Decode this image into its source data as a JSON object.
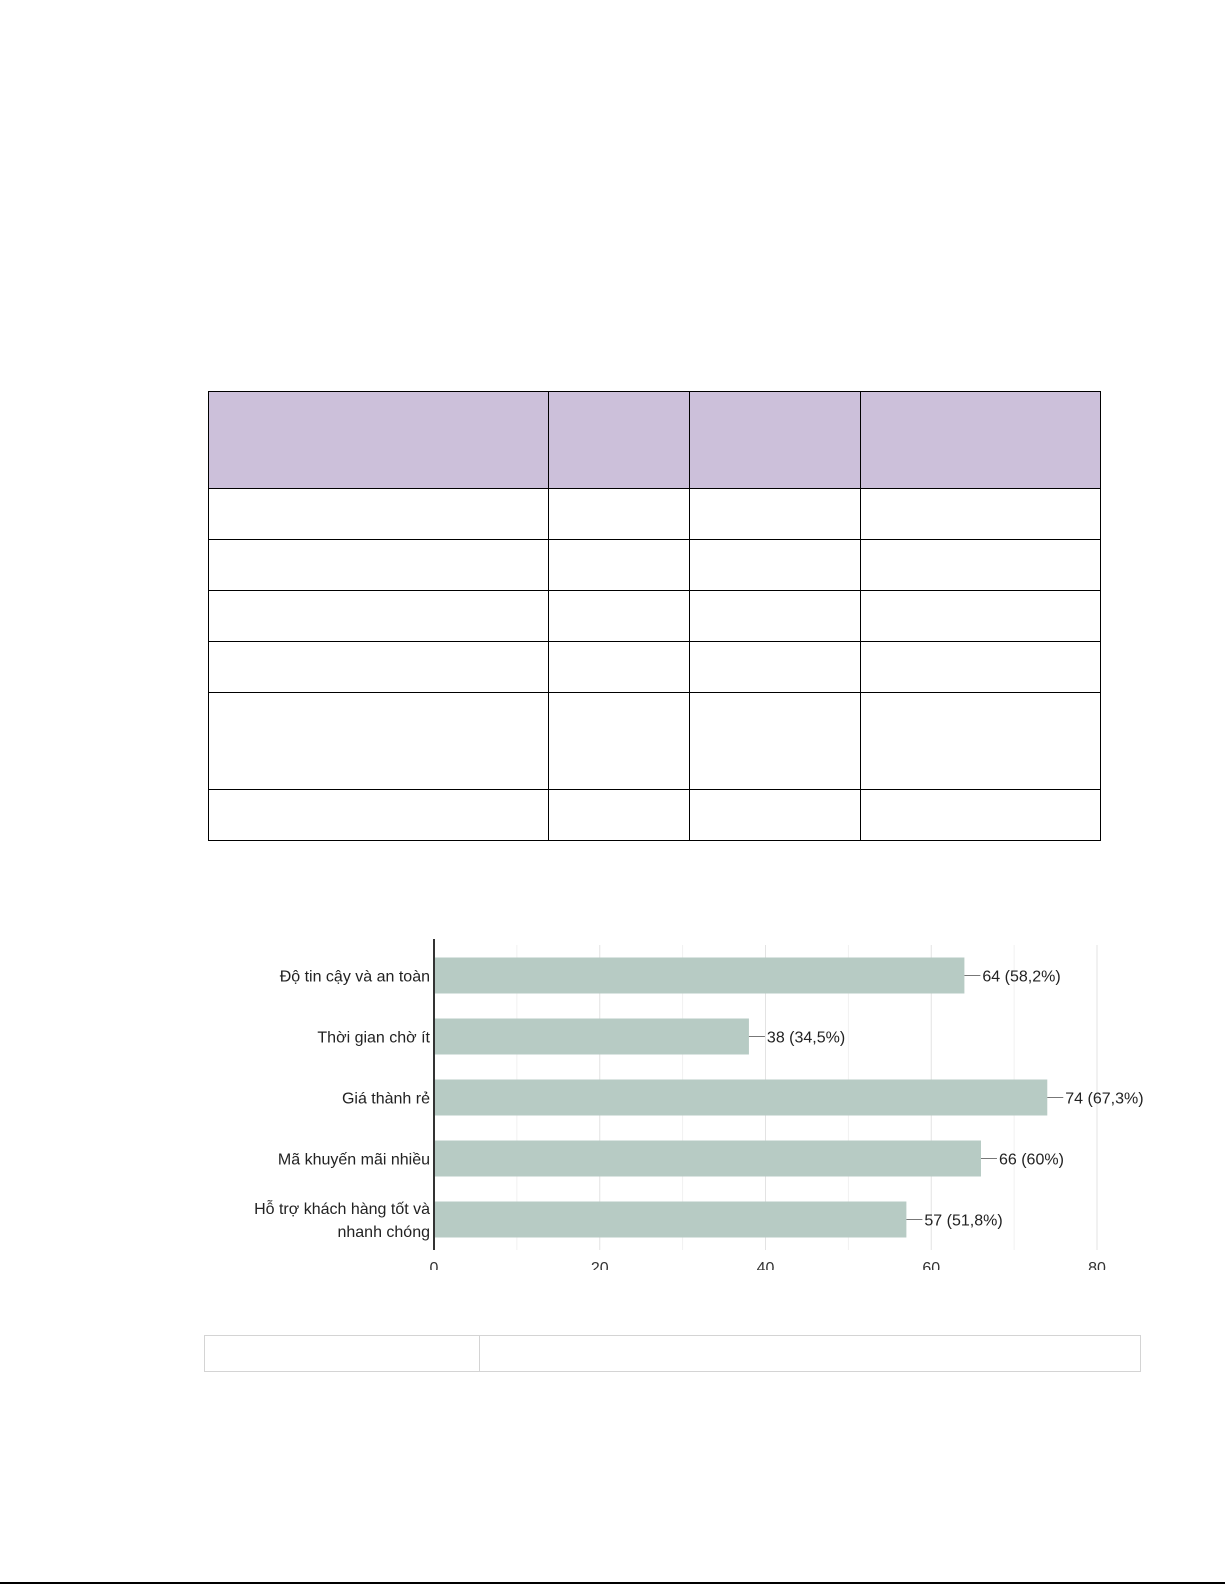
{
  "chart_data": {
    "type": "bar",
    "orientation": "horizontal",
    "categories": [
      "Độ tin cậy và an toàn",
      "Thời gian chờ ít",
      "Giá thành rẻ",
      "Mã khuyến mãi nhiều",
      "Hỗ trợ khách hàng tốt và nhanh chóng"
    ],
    "values": [
      64,
      38,
      74,
      66,
      57
    ],
    "data_labels": [
      "64 (58,2%)",
      "38 (34,5%)",
      "74 (67,3%)",
      "66 (60%)",
      "57 (51,8%)"
    ],
    "xlim": [
      0,
      80
    ],
    "x_ticks": [
      0,
      20,
      40,
      60,
      80
    ],
    "grid": true,
    "bar_color": "#b7cbc4"
  },
  "colors": {
    "table_header": "#ccc0da",
    "bar": "#b7cbc4"
  }
}
